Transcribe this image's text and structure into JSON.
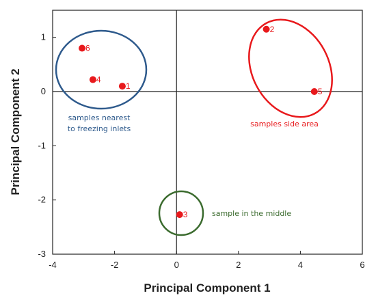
{
  "chart_data": {
    "type": "scatter",
    "xlabel": "Principal Component 1",
    "ylabel": "Principal Component 2",
    "xlim": [
      -4,
      6
    ],
    "ylim": [
      -3,
      1.5
    ],
    "xticks": [
      "-4",
      "-2",
      "0",
      "2",
      "4",
      "6"
    ],
    "yticks": [
      "1",
      "0",
      "-1",
      "-2",
      "-3"
    ],
    "grid": false,
    "point_color": "#e8191c",
    "points": [
      {
        "label": "1",
        "x": -1.75,
        "y": 0.1
      },
      {
        "label": "2",
        "x": 2.9,
        "y": 1.15
      },
      {
        "label": "3",
        "x": 0.1,
        "y": -2.27
      },
      {
        "label": "4",
        "x": -2.7,
        "y": 0.22
      },
      {
        "label": "5",
        "x": 4.45,
        "y": 0.0
      },
      {
        "label": "6",
        "x": -3.05,
        "y": 0.8
      }
    ],
    "groups": [
      {
        "annotation": [
          "samples nearest",
          "to freezing inlets"
        ],
        "color": "#2e5a8c",
        "members": [
          "1",
          "4",
          "6"
        ]
      },
      {
        "annotation": [
          "samples side area"
        ],
        "color": "#e8191c",
        "members": [
          "2",
          "5"
        ]
      },
      {
        "annotation": [
          "sample in the middle"
        ],
        "color": "#3b6b2e",
        "members": [
          "3"
        ]
      }
    ]
  }
}
